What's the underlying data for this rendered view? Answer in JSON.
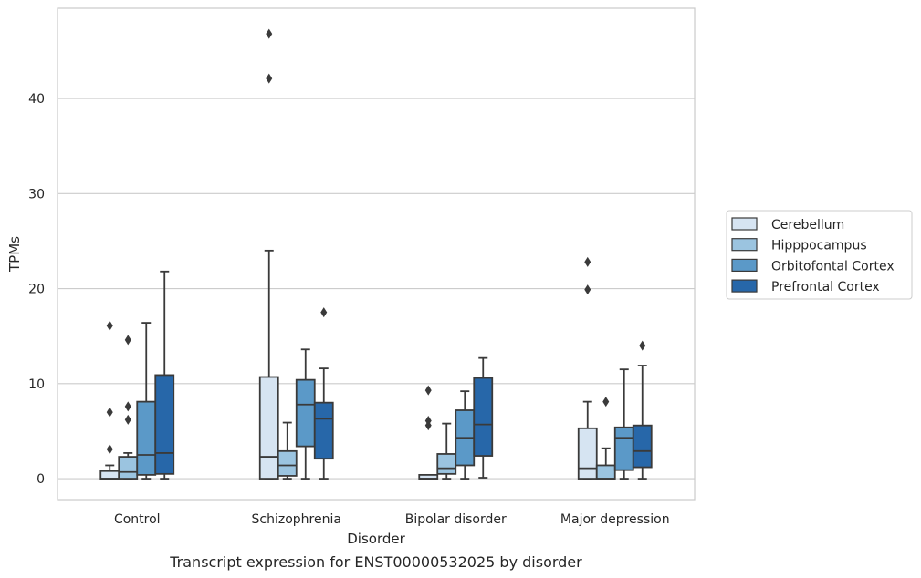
{
  "chart_data": {
    "type": "boxplot",
    "caption": "Transcript expression for ENST00000532025 by disorder",
    "xlabel": "Disorder",
    "ylabel": "TPMs",
    "ylim": [
      -2.2,
      49.5
    ],
    "yticks": [
      0,
      10,
      20,
      30,
      40
    ],
    "grid": "horizontal",
    "legend_position": "right",
    "categories": [
      "Control",
      "Schizophrenia",
      "Bipolar disorder",
      "Major depression"
    ],
    "series": [
      {
        "name": "Cerebellum",
        "color": "#d6e4f2",
        "boxes": [
          {
            "whislo": 0,
            "q1": 0,
            "med": 0,
            "q3": 0.8,
            "whishi": 1.4,
            "fliers": [
              3.1,
              7.0,
              16.1
            ]
          },
          {
            "whislo": 0,
            "q1": 0,
            "med": 2.3,
            "q3": 10.7,
            "whishi": 24.0,
            "fliers": [
              42.1,
              46.8
            ]
          },
          {
            "whislo": 0,
            "q1": 0,
            "med": 0,
            "q3": 0.4,
            "whishi": 0.4,
            "fliers": [
              5.6,
              6.1,
              9.3
            ]
          },
          {
            "whislo": 0,
            "q1": 0,
            "med": 1.1,
            "q3": 5.3,
            "whishi": 8.1,
            "fliers": [
              19.9,
              22.8
            ]
          }
        ]
      },
      {
        "name": "Hipppocampus",
        "color": "#9bc4e0",
        "boxes": [
          {
            "whislo": 0,
            "q1": 0,
            "med": 0.7,
            "q3": 2.3,
            "whishi": 2.7,
            "fliers": [
              6.2,
              7.6,
              14.6
            ]
          },
          {
            "whislo": 0,
            "q1": 0.3,
            "med": 1.4,
            "q3": 2.9,
            "whishi": 5.9,
            "fliers": []
          },
          {
            "whislo": 0,
            "q1": 0.5,
            "med": 1.1,
            "q3": 2.6,
            "whishi": 5.8,
            "fliers": []
          },
          {
            "whislo": 0,
            "q1": 0,
            "med": 0,
            "q3": 1.4,
            "whishi": 3.2,
            "fliers": [
              8.1
            ]
          }
        ]
      },
      {
        "name": "Orbitofontal Cortex",
        "color": "#5b99c8",
        "boxes": [
          {
            "whislo": 0,
            "q1": 0.4,
            "med": 2.5,
            "q3": 8.1,
            "whishi": 16.4,
            "fliers": []
          },
          {
            "whislo": 0,
            "q1": 3.4,
            "med": 7.8,
            "q3": 10.4,
            "whishi": 13.6,
            "fliers": []
          },
          {
            "whislo": 0,
            "q1": 1.4,
            "med": 4.3,
            "q3": 7.2,
            "whishi": 9.2,
            "fliers": []
          },
          {
            "whislo": 0,
            "q1": 0.9,
            "med": 4.3,
            "q3": 5.4,
            "whishi": 11.5,
            "fliers": []
          }
        ]
      },
      {
        "name": "Prefrontal Cortex",
        "color": "#2767a9",
        "boxes": [
          {
            "whislo": 0,
            "q1": 0.5,
            "med": 2.7,
            "q3": 10.9,
            "whishi": 21.8,
            "fliers": []
          },
          {
            "whislo": 0,
            "q1": 2.1,
            "med": 6.3,
            "q3": 8.0,
            "whishi": 11.6,
            "fliers": [
              17.5
            ]
          },
          {
            "whislo": 0.1,
            "q1": 2.4,
            "med": 5.7,
            "q3": 10.6,
            "whishi": 12.7,
            "fliers": []
          },
          {
            "whislo": 0,
            "q1": 1.2,
            "med": 2.9,
            "q3": 5.6,
            "whishi": 11.9,
            "fliers": [
              14.0
            ]
          }
        ]
      }
    ]
  }
}
